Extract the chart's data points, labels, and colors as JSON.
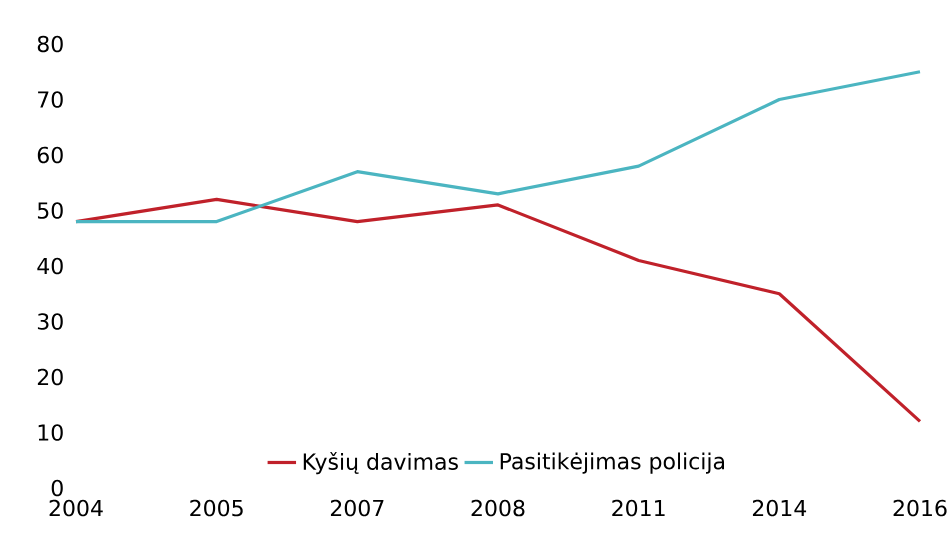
{
  "chart_data": {
    "type": "line",
    "categories": [
      "2004",
      "2005",
      "2007",
      "2008",
      "2011",
      "2014",
      "2016"
    ],
    "series": [
      {
        "name": "Kyšių davimas",
        "color": "#c0212a",
        "values": [
          48,
          52,
          48,
          51,
          41,
          35,
          12
        ]
      },
      {
        "name": "Pasitikėjimas policija",
        "color": "#4bb5c1",
        "values": [
          48,
          48,
          57,
          53,
          58,
          70,
          75
        ]
      }
    ],
    "ylim": [
      0,
      80
    ],
    "yticks": [
      0,
      10,
      20,
      30,
      40,
      50,
      60,
      70,
      80
    ],
    "legend": "bottom",
    "grid": false,
    "marker": "none",
    "line_style": "solid"
  }
}
